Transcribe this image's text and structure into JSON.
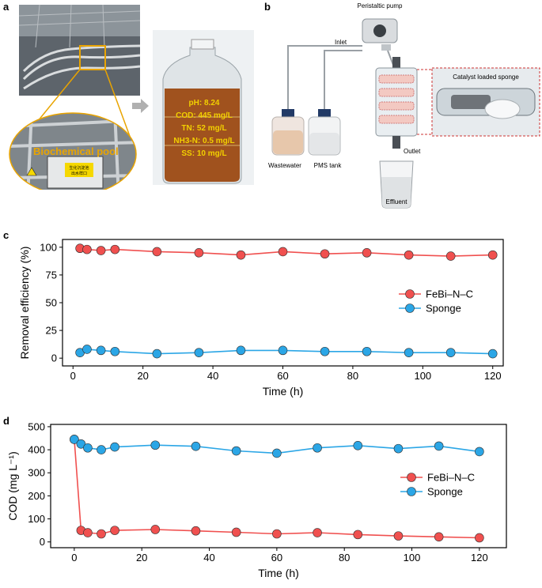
{
  "panels": {
    "a": {
      "letter": "a",
      "pool_label": "Biochemical pool",
      "sign_text_line1": "生化沉淀池",
      "sign_text_line2": "出水样口",
      "bottle_params": [
        "pH: 8.24",
        "COD: 445 mg/L",
        "TN: 52 mg/L",
        "NH3-N: 0.5 mg/L",
        "SS: 10 mg/L"
      ]
    },
    "b": {
      "letter": "b",
      "pump_label": "Peristaltic pump",
      "inlet_label": "Inlet",
      "outlet_label": "Outlet",
      "wastewater_label": "Wastewater",
      "pms_label": "PMS tank",
      "effluent_label": "Effluent",
      "sponge_label": "Catalyst loaded sponge"
    },
    "c": {
      "letter": "c"
    },
    "d": {
      "letter": "d"
    }
  },
  "colors": {
    "febi": "#f0504f",
    "sponge": "#2ba6e6",
    "orange": "#e9a400"
  },
  "chart_data": [
    {
      "type": "line",
      "xlabel": "Time (h)",
      "ylabel": "Removal efficiency (%)",
      "xlim": [
        -3,
        123
      ],
      "ylim": [
        -7,
        107
      ],
      "xticks": [
        0,
        20,
        40,
        60,
        80,
        100,
        120
      ],
      "yticks": [
        0,
        25,
        50,
        75,
        100
      ],
      "legend_position": "center-right",
      "series": [
        {
          "name": "FeBi–N–C",
          "color": "#f0504f",
          "x": [
            2,
            4,
            8,
            12,
            24,
            36,
            48,
            60,
            72,
            84,
            96,
            108,
            120
          ],
          "y": [
            99,
            98,
            97,
            98,
            96,
            95,
            93,
            96,
            94,
            95,
            93,
            92,
            93
          ]
        },
        {
          "name": "Sponge",
          "color": "#2ba6e6",
          "x": [
            2,
            4,
            8,
            12,
            24,
            36,
            48,
            60,
            72,
            84,
            96,
            108,
            120
          ],
          "y": [
            5,
            8,
            7,
            6,
            4,
            5,
            7,
            7,
            6,
            6,
            5,
            5,
            4
          ]
        }
      ]
    },
    {
      "type": "line",
      "xlabel": "Time (h)",
      "ylabel": "COD (mg L⁻¹)",
      "xlim": [
        -7,
        128
      ],
      "ylim": [
        -25,
        510
      ],
      "xticks": [
        0,
        20,
        40,
        60,
        80,
        100,
        120
      ],
      "yticks": [
        0,
        100,
        200,
        300,
        400,
        500
      ],
      "legend_position": "center-right",
      "series": [
        {
          "name": "FeBi–N–C",
          "color": "#f0504f",
          "x": [
            0,
            2,
            4,
            8,
            12,
            24,
            36,
            48,
            60,
            72,
            84,
            96,
            108,
            120
          ],
          "y": [
            445,
            50,
            40,
            35,
            50,
            54,
            48,
            42,
            35,
            40,
            32,
            26,
            22,
            18
          ]
        },
        {
          "name": "Sponge",
          "color": "#2ba6e6",
          "x": [
            0,
            2,
            4,
            8,
            12,
            24,
            36,
            48,
            60,
            72,
            84,
            96,
            108,
            120
          ],
          "y": [
            445,
            425,
            408,
            400,
            412,
            420,
            415,
            395,
            385,
            408,
            418,
            405,
            416,
            392
          ]
        }
      ]
    }
  ]
}
